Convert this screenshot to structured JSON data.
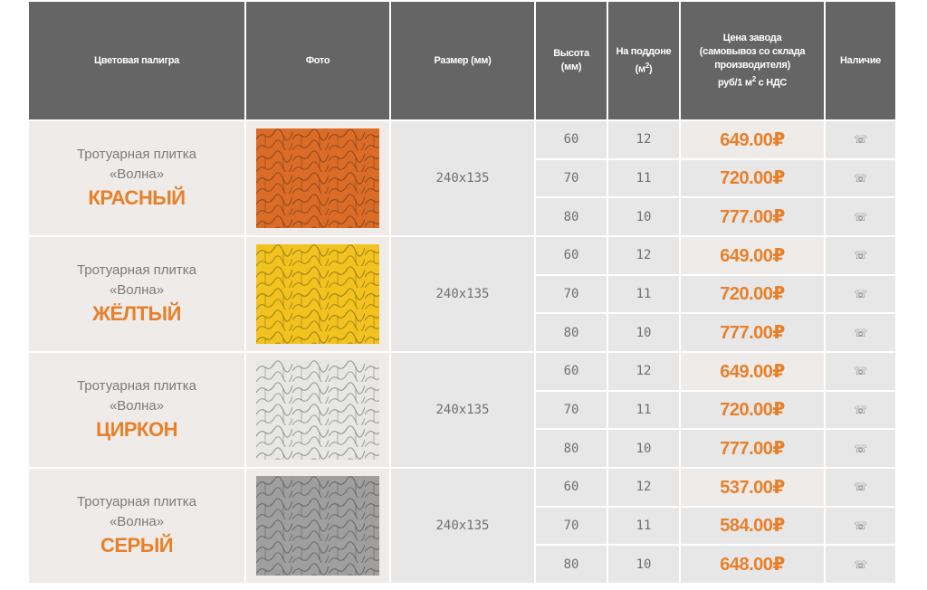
{
  "headers": {
    "color": "Цветовая палигра",
    "photo": "Фото",
    "size": "Размер (мм)",
    "height_line1": "Высота",
    "height_line2": "(мм)",
    "pallet_line1": "На поддоне",
    "pallet_line2": "(м",
    "price_line1": "Цена завода",
    "price_line2": "(самовывоз со склада",
    "price_line3": "производителя)",
    "price_line4": "руб/1 м",
    "price_line4_suffix": " с НДС",
    "superscript": "2",
    "availability": "Наличие"
  },
  "products": [
    {
      "type_line1": "Тротуарная плитка",
      "type_line2": "«Волна»",
      "color_name": "КРАСНЫЙ",
      "photo_icon": "red-wave-paving-photo",
      "tile_color": "#d9631a",
      "size": "240x135",
      "rows": [
        {
          "height": "60",
          "pallet": "12",
          "price": "649.00₽",
          "availability": "☏"
        },
        {
          "height": "70",
          "pallet": "11",
          "price": "720.00₽",
          "availability": "☏"
        },
        {
          "height": "80",
          "pallet": "10",
          "price": "777.00₽",
          "availability": "☏"
        }
      ]
    },
    {
      "type_line1": "Тротуарная плитка",
      "type_line2": "«Волна»",
      "color_name": "ЖЁЛТЫЙ",
      "photo_icon": "yellow-wave-paving-photo",
      "tile_color": "#f2c011",
      "size": "240x135",
      "rows": [
        {
          "height": "60",
          "pallet": "12",
          "price": "649.00₽",
          "availability": "☏"
        },
        {
          "height": "70",
          "pallet": "11",
          "price": "720.00₽",
          "availability": "☏"
        },
        {
          "height": "80",
          "pallet": "10",
          "price": "777.00₽",
          "availability": "☏"
        }
      ]
    },
    {
      "type_line1": "Тротуарная плитка",
      "type_line2": "«Волна»",
      "color_name": "ЦИРКОН",
      "photo_icon": "white-wave-paving-photo",
      "tile_color": "#e6e6e4",
      "size": "240x135",
      "rows": [
        {
          "height": "60",
          "pallet": "12",
          "price": "649.00₽",
          "availability": "☏"
        },
        {
          "height": "70",
          "pallet": "11",
          "price": "720.00₽",
          "availability": "☏"
        },
        {
          "height": "80",
          "pallet": "10",
          "price": "777.00₽",
          "availability": "☏"
        }
      ]
    },
    {
      "type_line1": "Тротуарная плитка",
      "type_line2": "«Волна»",
      "color_name": "СЕРЫЙ",
      "photo_icon": "grey-wave-paving-photo",
      "tile_color": "#9a9a9a",
      "size": "240x135",
      "rows": [
        {
          "height": "60",
          "pallet": "12",
          "price": "537.00₽",
          "availability": "☏"
        },
        {
          "height": "70",
          "pallet": "11",
          "price": "584.00₽",
          "availability": "☏"
        },
        {
          "height": "80",
          "pallet": "10",
          "price": "648.00₽",
          "availability": "☏"
        }
      ]
    }
  ]
}
